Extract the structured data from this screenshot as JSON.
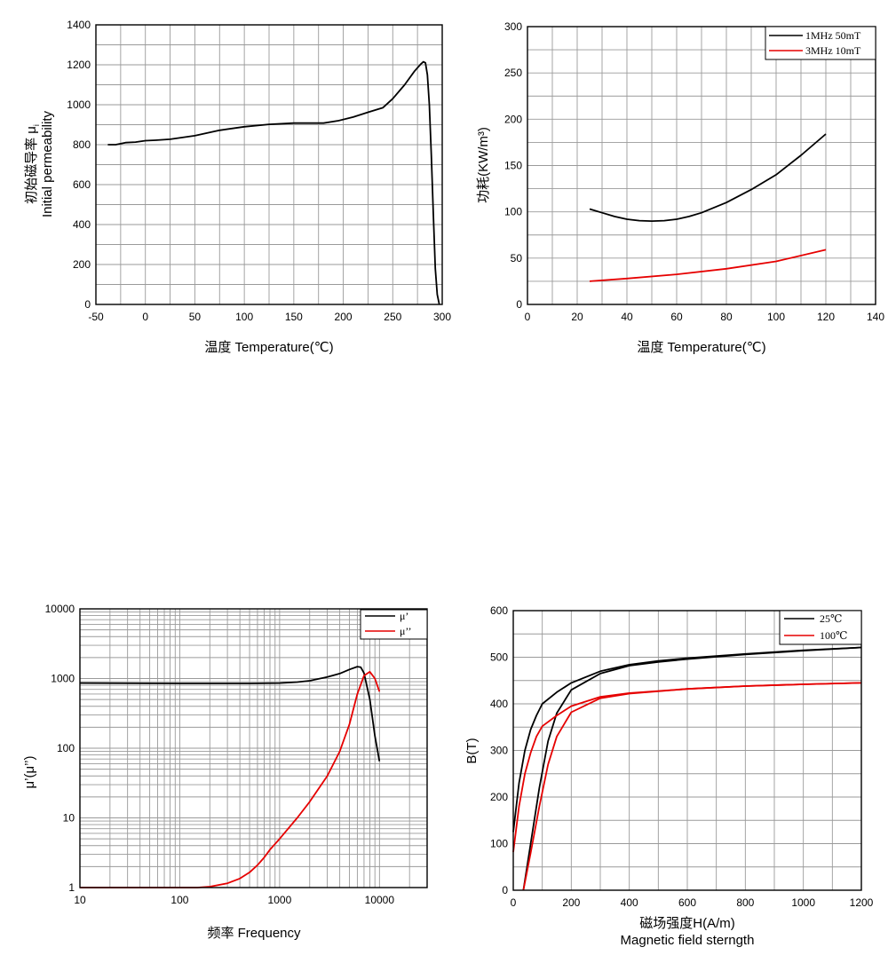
{
  "chart_data": [
    {
      "type": "line",
      "xlabel": "温度 Temperature(℃)",
      "ylabel_lines": [
        "初始磁导率 μ",
        "Initial permeability"
      ],
      "ylabel_subscript": "i",
      "xlim": [
        -50,
        300
      ],
      "ylim": [
        0,
        1400
      ],
      "xticks": [
        -50,
        0,
        50,
        100,
        150,
        200,
        250,
        300
      ],
      "yticks": [
        0,
        200,
        400,
        600,
        800,
        1000,
        1200,
        1400
      ],
      "grid": true,
      "series": [
        {
          "name": "μi",
          "color": "#000000",
          "x": [
            -38,
            -30,
            -20,
            -10,
            0,
            10,
            25,
            50,
            75,
            100,
            125,
            150,
            165,
            180,
            195,
            210,
            225,
            240,
            250,
            262,
            272,
            278,
            281,
            283,
            285,
            287,
            289,
            291,
            293,
            295,
            297
          ],
          "y": [
            800,
            800,
            810,
            813,
            820,
            822,
            827,
            845,
            872,
            890,
            902,
            908,
            908,
            908,
            920,
            938,
            962,
            985,
            1030,
            1100,
            1168,
            1202,
            1215,
            1210,
            1150,
            1000,
            750,
            450,
            180,
            50,
            0
          ]
        }
      ]
    },
    {
      "type": "line",
      "xlabel": "温度 Temperature(℃)",
      "ylabel": "功耗(KW/m³)",
      "xlim": [
        0,
        140
      ],
      "ylim": [
        0,
        300
      ],
      "xticks": [
        0,
        20,
        40,
        60,
        80,
        100,
        120,
        140
      ],
      "yticks": [
        0,
        50,
        100,
        150,
        200,
        250,
        300
      ],
      "grid": true,
      "legend": "top-right",
      "series": [
        {
          "name": "1MHz 50mT",
          "color": "#000000",
          "x": [
            25,
            30,
            35,
            40,
            45,
            50,
            55,
            60,
            65,
            70,
            80,
            90,
            100,
            110,
            120
          ],
          "y": [
            103,
            99,
            95,
            92,
            90.5,
            90,
            90.5,
            92,
            95,
            99,
            110,
            124,
            140,
            161,
            184
          ]
        },
        {
          "name": "3MHz 10mT",
          "color": "#e60000",
          "x": [
            25,
            40,
            60,
            80,
            100,
            120
          ],
          "y": [
            25,
            28,
            32.5,
            38.5,
            46.5,
            59
          ]
        }
      ]
    },
    {
      "type": "line",
      "xscale": "log",
      "yscale": "log",
      "xlabel": "频率 Frequency",
      "ylabel": "μ’(μ’’)",
      "xlim": [
        10,
        30000
      ],
      "ylim": [
        1,
        10000
      ],
      "xticks": [
        10,
        100,
        1000,
        10000
      ],
      "xtick_labels": [
        "10",
        "100",
        "1000",
        "10000"
      ],
      "yticks": [
        1,
        10,
        100,
        1000,
        10000
      ],
      "ytick_labels": [
        "1",
        "10",
        "100",
        "1000",
        "10000"
      ],
      "grid": true,
      "legend": "top-right",
      "series": [
        {
          "name": "μ’",
          "color": "#000000",
          "x": [
            10,
            100,
            500,
            1000,
            1500,
            2000,
            3000,
            4000,
            5000,
            6000,
            6500,
            7000,
            8000,
            9000,
            10000
          ],
          "y": [
            860,
            850,
            850,
            860,
            890,
            930,
            1050,
            1180,
            1350,
            1480,
            1450,
            1200,
            500,
            150,
            65
          ]
        },
        {
          "name": "μ’’",
          "color": "#e60000",
          "x": [
            10,
            150,
            200,
            300,
            400,
            500,
            600,
            700,
            800,
            1000,
            1500,
            2000,
            3000,
            4000,
            5000,
            6000,
            7000,
            8000,
            9000,
            10000
          ],
          "y": [
            1,
            1,
            1.03,
            1.15,
            1.35,
            1.65,
            2.1,
            2.7,
            3.5,
            5,
            10,
            17,
            40,
            90,
            220,
            600,
            1100,
            1250,
            1000,
            650
          ]
        }
      ]
    },
    {
      "type": "line",
      "xlabel_lines": [
        "磁场强度H(A/m)",
        "Magnetic field sterngth"
      ],
      "ylabel": "B(T)",
      "xlim": [
        0,
        1200
      ],
      "ylim": [
        0,
        600
      ],
      "xticks": [
        0,
        200,
        400,
        600,
        800,
        1000,
        1200
      ],
      "yticks": [
        0,
        100,
        200,
        300,
        400,
        500,
        600
      ],
      "grid": true,
      "legend": "top-right",
      "series": [
        {
          "name": "25℃",
          "color": "#000000",
          "loop": true,
          "upper": {
            "x": [
              0,
              20,
              40,
              60,
              80,
              100,
              150,
              200,
              300,
              400,
              500,
              600,
              800,
              1000,
              1200
            ],
            "y": [
              125,
              230,
              300,
              345,
              375,
              400,
              425,
              445,
              470,
              484,
              492,
              498,
              507,
              515,
              521
            ]
          },
          "lower": {
            "x": [
              35,
              60,
              90,
              120,
              150,
              200,
              300,
              400,
              500,
              600,
              800,
              1000,
              1200
            ],
            "y": [
              0,
              100,
              220,
              320,
              380,
              430,
              465,
              482,
              490,
              496,
              506,
              514,
              521
            ]
          }
        },
        {
          "name": "100℃",
          "color": "#e60000",
          "loop": true,
          "upper": {
            "x": [
              0,
              20,
              40,
              60,
              80,
              100,
              150,
              200,
              300,
              400,
              600,
              800,
              1000,
              1200
            ],
            "y": [
              82,
              180,
              250,
              295,
              330,
              352,
              375,
              395,
              415,
              423,
              432,
              438,
              442,
              445
            ]
          },
          "lower": {
            "x": [
              35,
              60,
              90,
              120,
              150,
              200,
              300,
              400,
              600,
              800,
              1000,
              1200
            ],
            "y": [
              0,
              80,
              180,
              270,
              330,
              382,
              412,
              422,
              432,
              438,
              442,
              445
            ]
          }
        }
      ]
    }
  ]
}
